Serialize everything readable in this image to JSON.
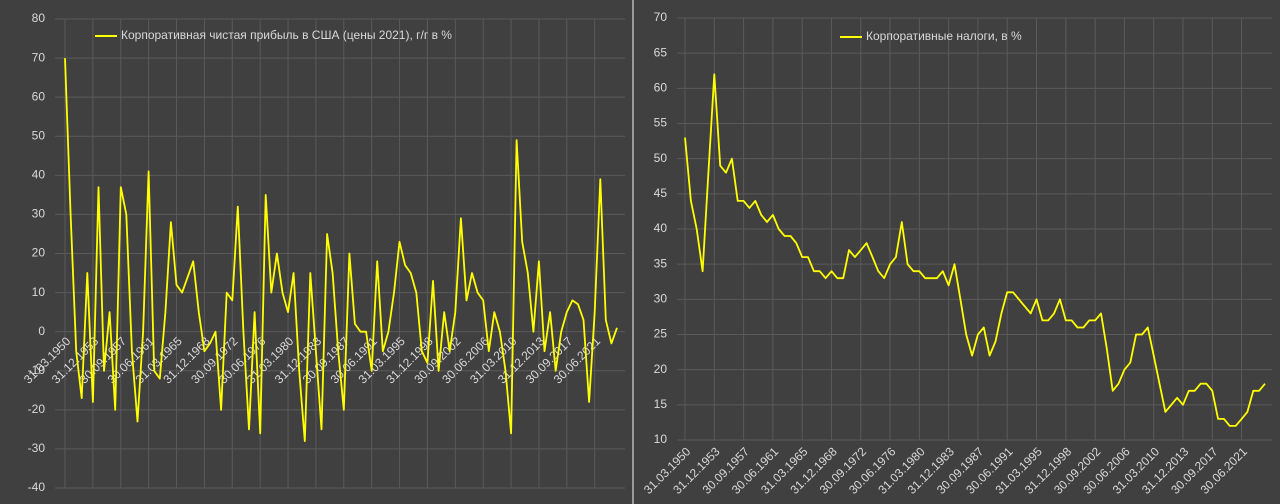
{
  "chart_data": [
    {
      "type": "line",
      "categories": [
        "31.03.1950",
        null,
        null,
        null,
        null,
        "31.12.1953",
        null,
        null,
        null,
        null,
        "30.09.1957",
        null,
        null,
        null,
        null,
        "30.06.1961",
        null,
        null,
        null,
        null,
        "31.03.1965",
        null,
        null,
        null,
        null,
        "31.12.1968",
        null,
        null,
        null,
        null,
        "30.09.1972",
        null,
        null,
        null,
        null,
        "30.06.1976",
        null,
        null,
        null,
        null,
        "31.03.1980",
        null,
        null,
        null,
        null,
        "31.12.1983",
        null,
        null,
        null,
        null,
        "30.09.1987",
        null,
        null,
        null,
        null,
        "30.06.1991",
        null,
        null,
        null,
        null,
        "31.03.1995",
        null,
        null,
        null,
        null,
        "31.12.1998",
        null,
        null,
        null,
        null,
        "30.09.2002",
        null,
        null,
        null,
        null,
        "30.06.2006",
        null,
        null,
        null,
        null,
        "31.03.2010",
        null,
        null,
        null,
        null,
        "31.12.2013",
        null,
        null,
        null,
        null,
        "30.09.2017",
        null,
        null,
        null,
        null,
        "30.06.2021",
        null,
        null,
        null,
        null
      ],
      "series": [
        {
          "name": "Корпоративная чистая прибыль в США (цены 2021), г/г в %",
          "color": "#ffff00",
          "values": [
            70,
            30,
            -5,
            -17,
            15,
            -18,
            37,
            -10,
            5,
            -20,
            37,
            30,
            -5,
            -23,
            0,
            41,
            -10,
            -12,
            5,
            28,
            12,
            10,
            14,
            18,
            5,
            -5,
            -3,
            0,
            -20,
            10,
            8,
            32,
            0,
            -25,
            5,
            -26,
            35,
            10,
            20,
            10,
            5,
            15,
            -10,
            -28,
            15,
            -5,
            -25,
            25,
            15,
            -5,
            -20,
            20,
            2,
            0,
            0,
            -10,
            18,
            -5,
            0,
            10,
            23,
            17,
            15,
            10,
            -5,
            -8,
            13,
            -10,
            5,
            -5,
            5,
            29,
            8,
            15,
            10,
            8,
            -5,
            5,
            0,
            -10,
            -26,
            49,
            23,
            15,
            0,
            18,
            -5,
            5,
            -10,
            0,
            5,
            8,
            7,
            3,
            -18,
            5,
            39,
            3,
            -3,
            1
          ]
        }
      ],
      "ylim": [
        -40,
        80
      ],
      "yticks": [
        -40,
        -30,
        -20,
        -10,
        0,
        10,
        20,
        30,
        40,
        50,
        60,
        70,
        80
      ],
      "grid": true
    },
    {
      "type": "line",
      "categories": [
        "31.03.1950",
        null,
        null,
        null,
        null,
        "31.12.1953",
        null,
        null,
        null,
        null,
        "30.09.1957",
        null,
        null,
        null,
        null,
        "30.06.1961",
        null,
        null,
        null,
        null,
        "31.03.1965",
        null,
        null,
        null,
        null,
        "31.12.1968",
        null,
        null,
        null,
        null,
        "30.09.1972",
        null,
        null,
        null,
        null,
        "30.06.1976",
        null,
        null,
        null,
        null,
        "31.03.1980",
        null,
        null,
        null,
        null,
        "31.12.1983",
        null,
        null,
        null,
        null,
        "30.09.1987",
        null,
        null,
        null,
        null,
        "30.06.1991",
        null,
        null,
        null,
        null,
        "31.03.1995",
        null,
        null,
        null,
        null,
        "31.12.1998",
        null,
        null,
        null,
        null,
        "30.09.2002",
        null,
        null,
        null,
        null,
        "30.06.2006",
        null,
        null,
        null,
        null,
        "31.03.2010",
        null,
        null,
        null,
        null,
        "31.12.2013",
        null,
        null,
        null,
        null,
        "30.09.2017",
        null,
        null,
        null,
        null,
        "30.06.2021",
        null,
        null,
        null,
        null
      ],
      "series": [
        {
          "name": "Корпоративные налоги, в %",
          "color": "#ffff00",
          "values": [
            53,
            44,
            40,
            34,
            48,
            62,
            49,
            48,
            50,
            44,
            44,
            43,
            44,
            42,
            41,
            42,
            40,
            39,
            39,
            38,
            36,
            36,
            34,
            34,
            33,
            34,
            33,
            33,
            37,
            36,
            37,
            38,
            36,
            34,
            33,
            35,
            36,
            41,
            35,
            34,
            34,
            33,
            33,
            33,
            34,
            32,
            35,
            30,
            25,
            22,
            25,
            26,
            22,
            24,
            28,
            31,
            31,
            30,
            29,
            28,
            30,
            27,
            27,
            28,
            30,
            27,
            27,
            26,
            26,
            27,
            27,
            28,
            23,
            17,
            18,
            20,
            21,
            25,
            25,
            26,
            22,
            18,
            14,
            15,
            16,
            15,
            17,
            17,
            18,
            18,
            17,
            13,
            13,
            12,
            12,
            13,
            14,
            17,
            17,
            18
          ]
        }
      ],
      "ylim": [
        10,
        70
      ],
      "yticks": [
        10,
        15,
        20,
        25,
        30,
        35,
        40,
        45,
        50,
        55,
        60,
        65,
        70
      ],
      "grid": true
    }
  ]
}
